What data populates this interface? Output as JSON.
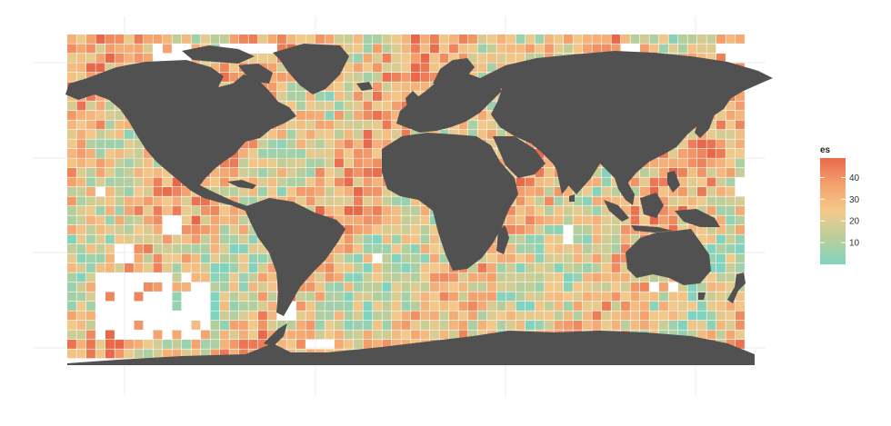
{
  "legend": {
    "title": "es",
    "ticks": [
      "10",
      "20",
      "30",
      "40"
    ],
    "tick_values": [
      10,
      20,
      30,
      40
    ],
    "min": 0,
    "max": 49,
    "colors": [
      "#7fd3bf",
      "#b9ce9a",
      "#f3c98a",
      "#f4a26e",
      "#e8694a"
    ]
  },
  "map": {
    "land_color": "#515151",
    "background_color": "#ffffff",
    "gridline_color": "#ececec",
    "ocean_missing_color": "#ffffff"
  }
}
